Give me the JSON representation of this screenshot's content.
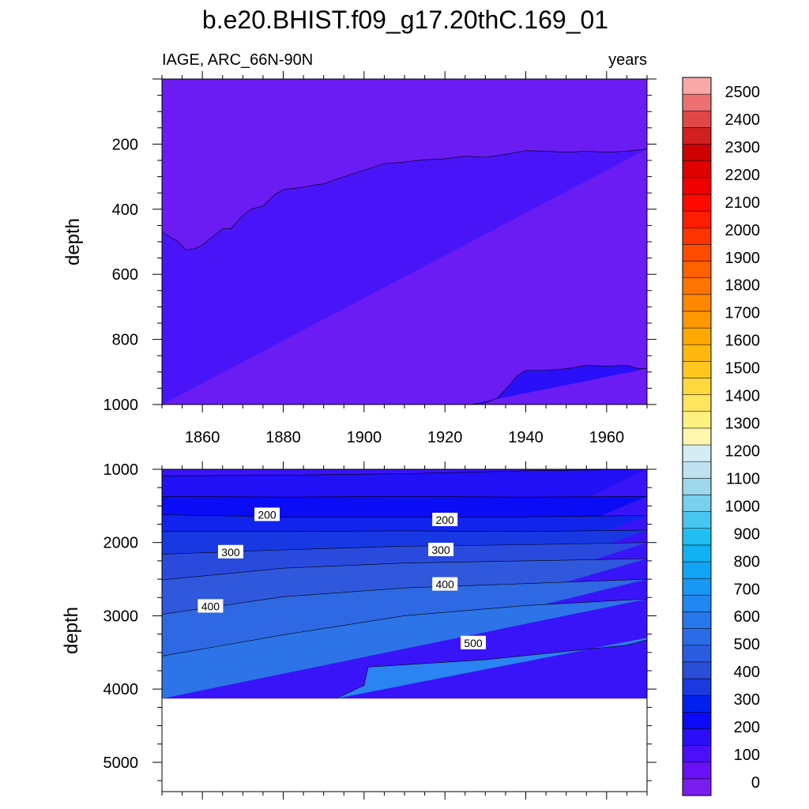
{
  "title": "b.e20.BHIST.f09_g17.20thC.169_01",
  "subtitle_left": "IAGE, ARC_66N-90N",
  "subtitle_right": "years",
  "chart_data": [
    {
      "type": "heatmap",
      "panel": "upper",
      "xlabel": "",
      "ylabel": "depth",
      "xlim": [
        1850,
        1970
      ],
      "ylim": [
        0,
        1000
      ],
      "y_reversed": true,
      "xticks": [
        "1860",
        "1880",
        "1900",
        "1920",
        "1940",
        "1960"
      ],
      "yticks": [
        "200",
        "400",
        "600",
        "800",
        "1000"
      ],
      "contour_levels": [
        0,
        100,
        200
      ],
      "boundaries": [
        {
          "level": 100,
          "x": [
            1850,
            1854,
            1856,
            1858,
            1860,
            1865,
            1867,
            1870,
            1872,
            1875,
            1878,
            1880,
            1885,
            1888,
            1890,
            1895,
            1900,
            1905,
            1910,
            1915,
            1920,
            1925,
            1930,
            1935,
            1940,
            1945,
            1950,
            1955,
            1960,
            1965,
            1970
          ],
          "y": [
            470,
            500,
            525,
            522,
            510,
            460,
            460,
            420,
            400,
            390,
            355,
            340,
            332,
            325,
            322,
            300,
            280,
            260,
            255,
            248,
            245,
            237,
            240,
            232,
            220,
            222,
            225,
            222,
            225,
            222,
            215
          ]
        },
        {
          "level": 200,
          "x": [
            1926,
            1930,
            1933,
            1936,
            1938,
            1940,
            1945,
            1950,
            1955,
            1960,
            1965,
            1968,
            1970
          ],
          "y": [
            1000,
            995,
            980,
            940,
            910,
            895,
            895,
            890,
            880,
            882,
            880,
            890,
            890
          ]
        }
      ]
    },
    {
      "type": "heatmap",
      "panel": "lower",
      "xlabel": "",
      "ylabel": "depth",
      "xlim": [
        1850,
        1970
      ],
      "ylim": [
        1000,
        5400
      ],
      "y_reversed": true,
      "xticks": [
        "1860",
        "1880",
        "1900",
        "1920",
        "1940",
        "1960"
      ],
      "yticks": [
        "1000",
        "2000",
        "3000",
        "4000",
        "5000"
      ],
      "data_bottom_depth": 4130,
      "contour_levels": [
        100,
        150,
        200,
        250,
        300,
        350,
        400,
        450,
        500
      ],
      "contours": [
        {
          "level": 100,
          "x": [
            1850,
            1880,
            1910,
            1940,
            1970
          ],
          "y": [
            1090,
            1080,
            1060,
            1020,
            1000
          ]
        },
        {
          "level": 150,
          "x": [
            1850,
            1880,
            1910,
            1940,
            1970
          ],
          "y": [
            1370,
            1380,
            1370,
            1380,
            1370
          ]
        },
        {
          "level": 200,
          "x": [
            1850,
            1880,
            1910,
            1940,
            1970
          ],
          "y": [
            1620,
            1650,
            1650,
            1650,
            1630
          ]
        },
        {
          "level": 250,
          "x": [
            1850,
            1880,
            1910,
            1940,
            1970
          ],
          "y": [
            1850,
            1850,
            1840,
            1850,
            1830
          ]
        },
        {
          "level": 300,
          "x": [
            1850,
            1880,
            1910,
            1940,
            1970
          ],
          "y": [
            2160,
            2100,
            2050,
            2030,
            2000
          ]
        },
        {
          "level": 350,
          "x": [
            1850,
            1880,
            1910,
            1940,
            1970
          ],
          "y": [
            2510,
            2350,
            2280,
            2250,
            2220
          ]
        },
        {
          "level": 400,
          "x": [
            1850,
            1880,
            1910,
            1940,
            1970
          ],
          "y": [
            2980,
            2740,
            2620,
            2560,
            2500
          ]
        },
        {
          "level": 450,
          "x": [
            1850,
            1880,
            1910,
            1940,
            1970
          ],
          "y": [
            3550,
            3260,
            3000,
            2860,
            2770
          ]
        },
        {
          "level": 500,
          "x": [
            1893,
            1900,
            1901,
            1930,
            1965,
            1972
          ],
          "y": [
            4130,
            3950,
            3700,
            3600,
            3400,
            3300
          ]
        }
      ],
      "contour_labels": [
        {
          "text": "200",
          "x": 1876,
          "y": 1620
        },
        {
          "text": "200",
          "x": 1920,
          "y": 1690
        },
        {
          "text": "300",
          "x": 1867,
          "y": 2130
        },
        {
          "text": "300",
          "x": 1919,
          "y": 2100
        },
        {
          "text": "400",
          "x": 1862,
          "y": 2870
        },
        {
          "text": "400",
          "x": 1920,
          "y": 2570
        },
        {
          "text": "500",
          "x": 1927,
          "y": 3370
        }
      ]
    }
  ],
  "colorbar": {
    "labels": [
      "2500",
      "2400",
      "2300",
      "2200",
      "2100",
      "2000",
      "1900",
      "1800",
      "1700",
      "1600",
      "1500",
      "1400",
      "1300",
      "1200",
      "1100",
      "1000",
      "900",
      "800",
      "700",
      "600",
      "500",
      "400",
      "300",
      "200",
      "100",
      "0"
    ],
    "colors": [
      "#7a1ff0",
      "#6a10f4",
      "#4b10f8",
      "#2c0ff8",
      "#0a0af8",
      "#0020f0",
      "#1a3ae0",
      "#2a4ed8",
      "#2a5ce0",
      "#2a6ce8",
      "#2878ec",
      "#2088f0",
      "#1898f4",
      "#10a4f4",
      "#10b2f4",
      "#20bef2",
      "#48c6f0",
      "#78d0ee",
      "#9ed8ec",
      "#bee2f0",
      "#d4ecf4",
      "#fff7b0",
      "#fff080",
      "#ffe460",
      "#ffd840",
      "#ffc820",
      "#ffb810",
      "#ffa800",
      "#ff9800",
      "#ff8800",
      "#ff7400",
      "#ff6000",
      "#ff4c00",
      "#ff3400",
      "#ff1e00",
      "#ff0a00",
      "#f00000",
      "#e00000",
      "#d00000",
      "#d02020",
      "#e04848",
      "#ec7070",
      "#f8a8a8"
    ]
  }
}
